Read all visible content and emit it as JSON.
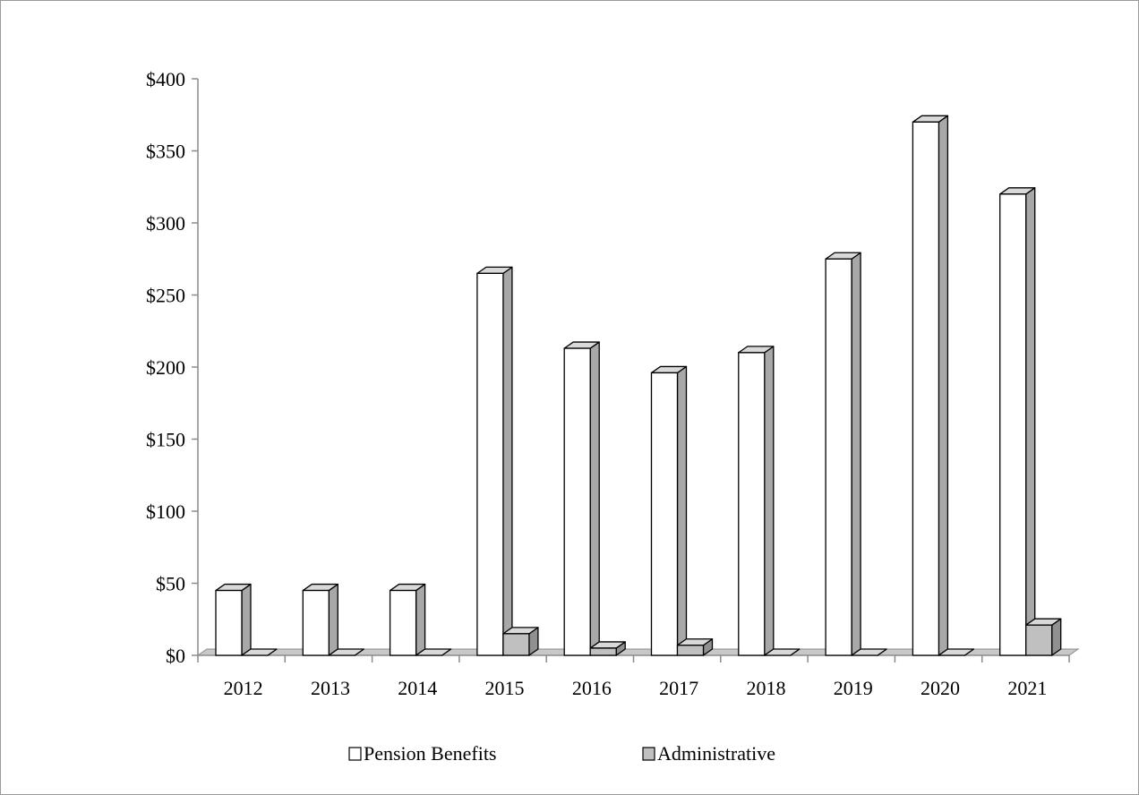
{
  "chart_data": {
    "type": "bar",
    "title": "",
    "xlabel": "",
    "ylabel": "",
    "categories": [
      "2012",
      "2013",
      "2014",
      "2015",
      "2016",
      "2017",
      "2018",
      "2019",
      "2020",
      "2021"
    ],
    "series": [
      {
        "name": "Pension Benefits",
        "values": [
          45,
          45,
          45,
          265,
          213,
          196,
          210,
          275,
          370,
          320
        ],
        "color": "#ffffff"
      },
      {
        "name": "Administrative",
        "values": [
          0,
          0,
          0,
          15,
          5,
          7,
          0,
          0,
          0,
          21
        ],
        "color": "#c0c0c0"
      }
    ],
    "ylim": [
      0,
      400
    ],
    "yticks": [
      0,
      50,
      100,
      150,
      200,
      250,
      300,
      350,
      400
    ],
    "ytick_labels": [
      "$0",
      "$50",
      "$100",
      "$150",
      "$200",
      "$250",
      "$300",
      "$350",
      "$400"
    ],
    "style": "3d-clustered-bar",
    "grid": false,
    "legend_position": "bottom"
  }
}
